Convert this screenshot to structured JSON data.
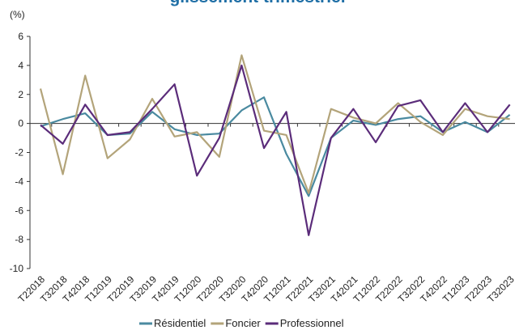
{
  "chart_data": {
    "type": "line",
    "title": "glissement trimestriel",
    "ylabel": "(%)",
    "categories": [
      "T22018",
      "T32018",
      "T42018",
      "T12019",
      "T22019",
      "T32019",
      "T42019",
      "T12020",
      "T22020",
      "T32020",
      "T42020",
      "T12021",
      "T22021",
      "T32021",
      "T42021",
      "T12022",
      "T22022",
      "T32022",
      "T42022",
      "T12023",
      "T22023",
      "T32023"
    ],
    "series": [
      {
        "name": "Résidentiel",
        "color": "#4a8aa0",
        "values": [
          -0.2,
          0.3,
          0.7,
          -0.8,
          -0.7,
          0.8,
          -0.4,
          -0.8,
          -0.7,
          0.9,
          1.8,
          -2.1,
          -5.0,
          -1.0,
          0.2,
          -0.1,
          0.3,
          0.5,
          -0.6,
          0.1,
          -0.6,
          0.6
        ]
      },
      {
        "name": "Foncier",
        "color": "#b3a47a",
        "values": [
          2.4,
          -3.5,
          3.3,
          -2.4,
          -1.1,
          1.7,
          -0.9,
          -0.6,
          -2.3,
          4.7,
          -0.5,
          -0.8,
          -4.8,
          1.0,
          0.4,
          0.0,
          1.4,
          0.1,
          -0.8,
          1.0,
          0.5,
          0.3
        ]
      },
      {
        "name": "Professionnel",
        "color": "#5b2c7a",
        "values": [
          -0.1,
          -1.4,
          1.3,
          -0.8,
          -0.6,
          1.0,
          2.7,
          -3.6,
          -1.0,
          4.0,
          -1.7,
          0.8,
          -7.7,
          -1.0,
          1.0,
          -1.3,
          1.2,
          1.6,
          -0.6,
          1.4,
          -0.6,
          1.3
        ]
      }
    ],
    "ylim": [
      -10,
      6
    ],
    "yticks": [
      -10,
      -8,
      -6,
      -4,
      -2,
      0,
      2,
      4,
      6
    ],
    "grid": false,
    "legend": "bottom"
  }
}
